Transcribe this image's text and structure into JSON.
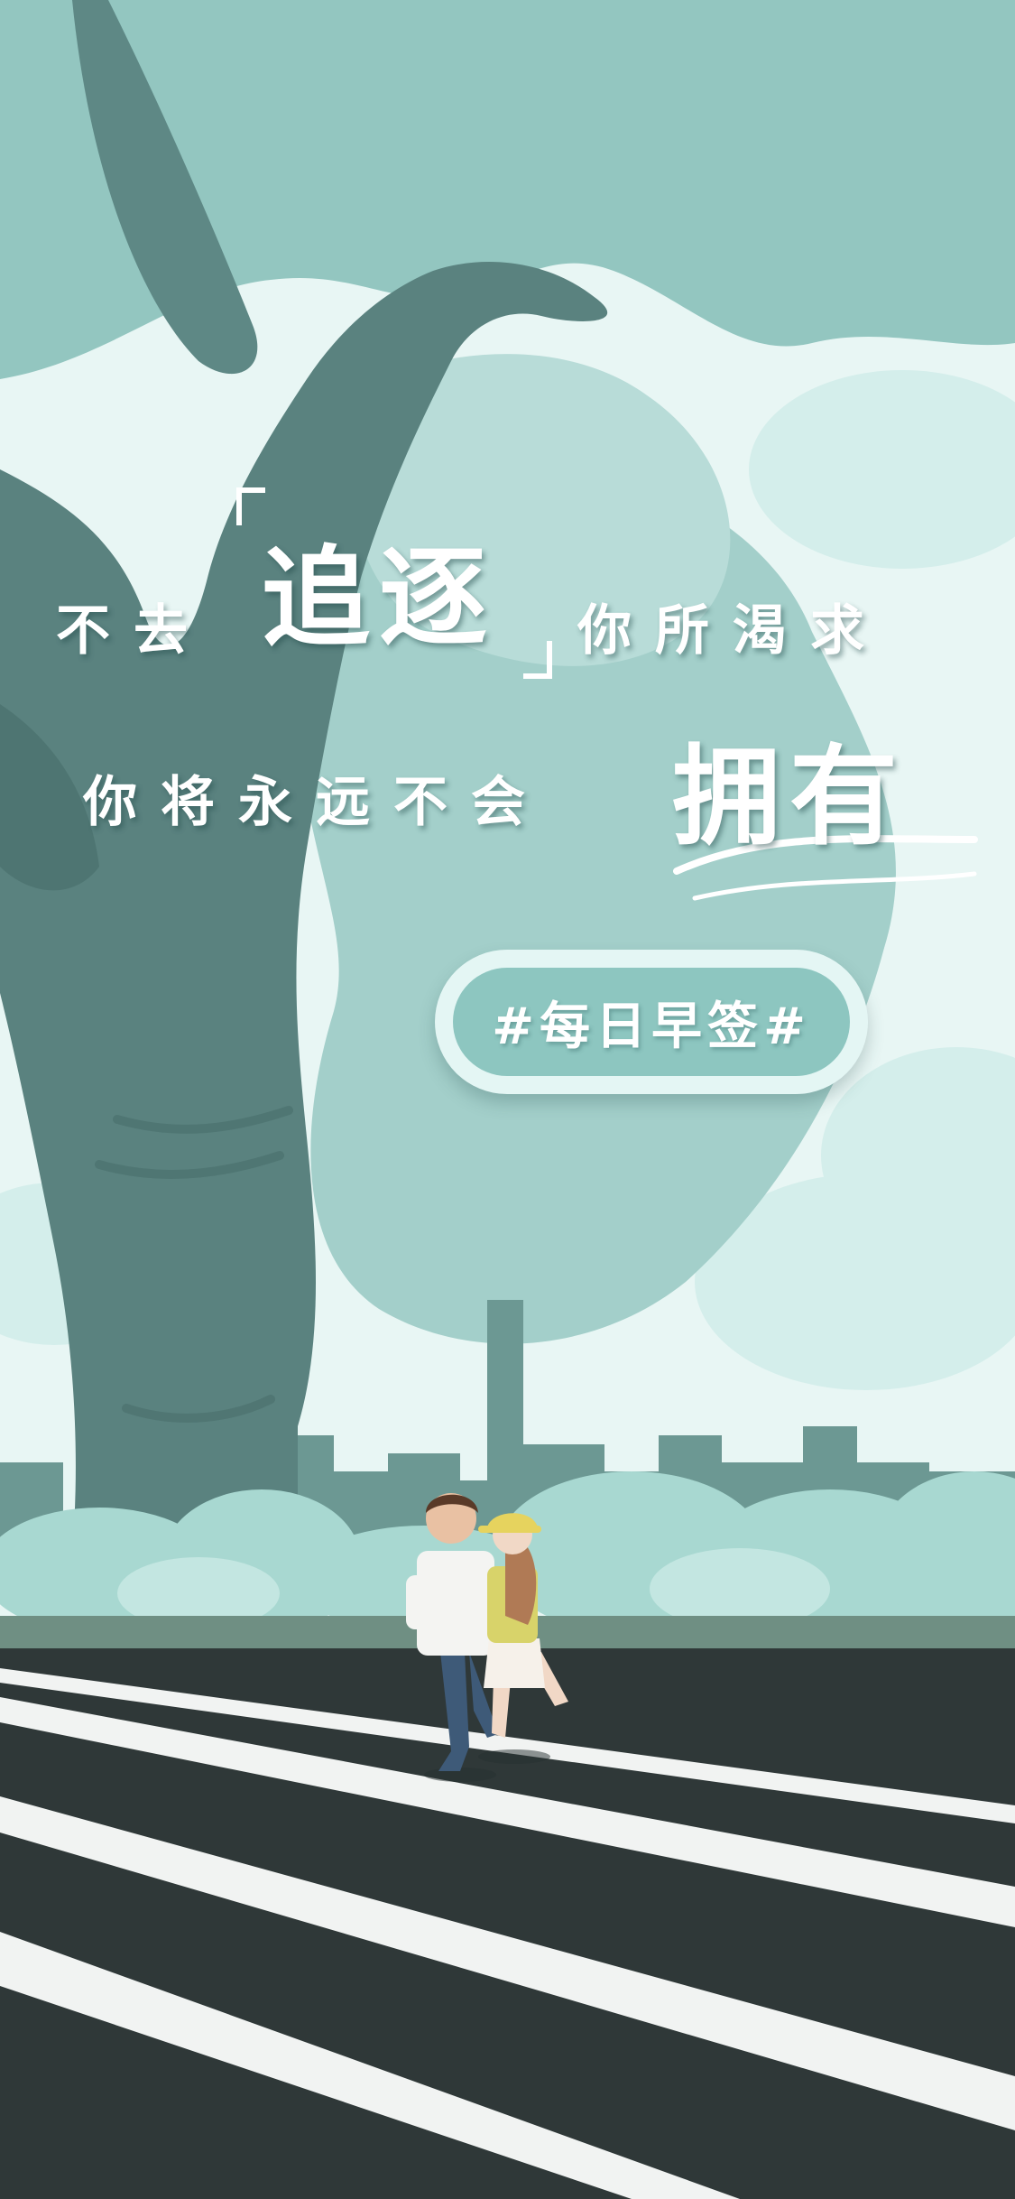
{
  "headline": {
    "line1_pre": "不去",
    "line1_emph": "追逐",
    "line1_post": "你所渴求",
    "line2_pre": "你将永远不会",
    "line2_emph": "拥有"
  },
  "tag": {
    "label": "#每日早签#"
  },
  "colors": {
    "sky": "#eaf7f5",
    "canopy": "#8ec3bd",
    "trunk": "#577f7c",
    "skyline": "#6f9c97",
    "bushes": "#a9d8d2",
    "road": "#2e3737",
    "lane": "#f2f4f3",
    "badge_bg": "#8dc6c0"
  }
}
